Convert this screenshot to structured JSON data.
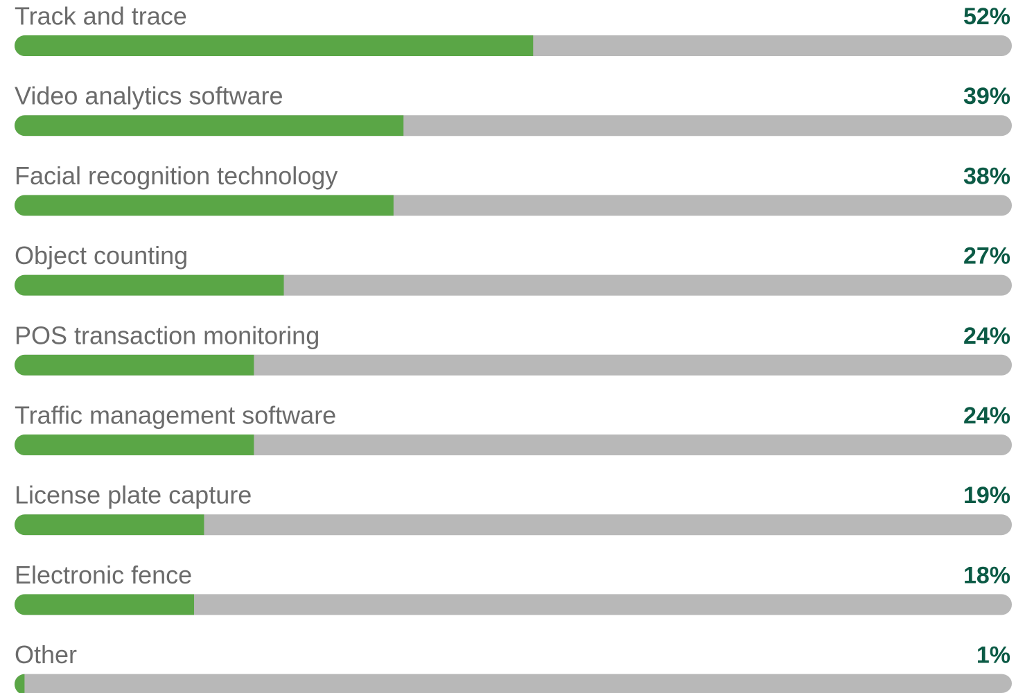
{
  "chart_data": {
    "type": "bar",
    "orientation": "horizontal",
    "categories": [
      "Track and trace",
      "Video analytics software",
      "Facial recognition technology",
      "Object counting",
      "POS transaction monitoring",
      "Traffic management software",
      "License plate capture",
      "Electronic fence",
      "Other"
    ],
    "values": [
      52,
      39,
      38,
      27,
      24,
      24,
      19,
      18,
      1
    ],
    "value_labels": [
      "52%",
      "39%",
      "38%",
      "27%",
      "24%",
      "24%",
      "19%",
      "18%",
      "1%"
    ],
    "color": "#5aa646",
    "track_color": "#b8b8b8",
    "xlim": [
      0,
      100
    ]
  }
}
